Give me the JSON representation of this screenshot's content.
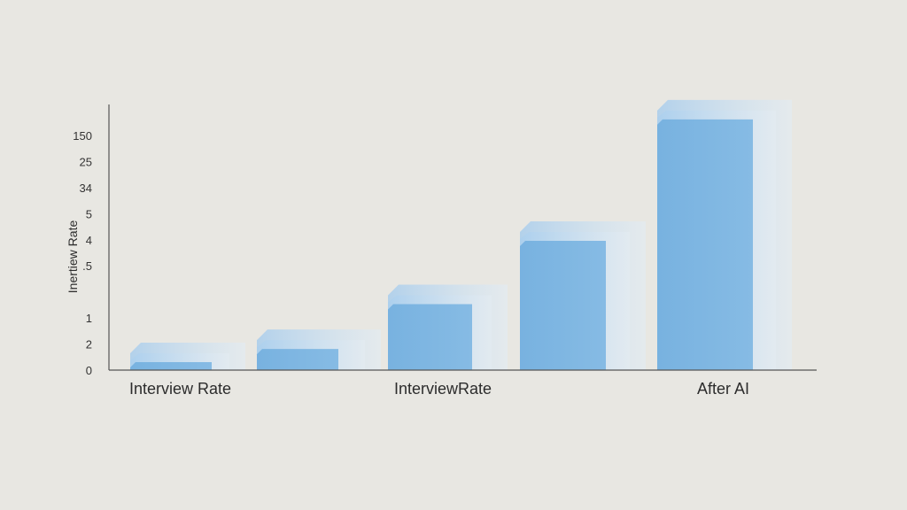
{
  "chart_data": {
    "type": "bar",
    "style": "3d-stacked-layers",
    "ylabel": "Inertiew Rate",
    "y_tick_labels": [
      "0",
      "2",
      "1",
      "",
      ".5",
      "4",
      "5",
      "34",
      "25",
      "150"
    ],
    "category_labels": [
      "Interview Rate",
      "InterviewRate",
      "After AI"
    ],
    "bars": [
      {
        "value": 0.3
      },
      {
        "value": 0.8
      },
      {
        "value": 2.5
      },
      {
        "value": 4.9
      },
      {
        "value": 9.5
      }
    ],
    "ylim": [
      0,
      10
    ],
    "grid": false,
    "legend": "none"
  },
  "colors": {
    "background": "#e8e7e2",
    "bar_front": "#7db6e2",
    "bar_layer": "#a9cdec",
    "bar_top": "#b9d8f1",
    "axis": "#555555"
  }
}
